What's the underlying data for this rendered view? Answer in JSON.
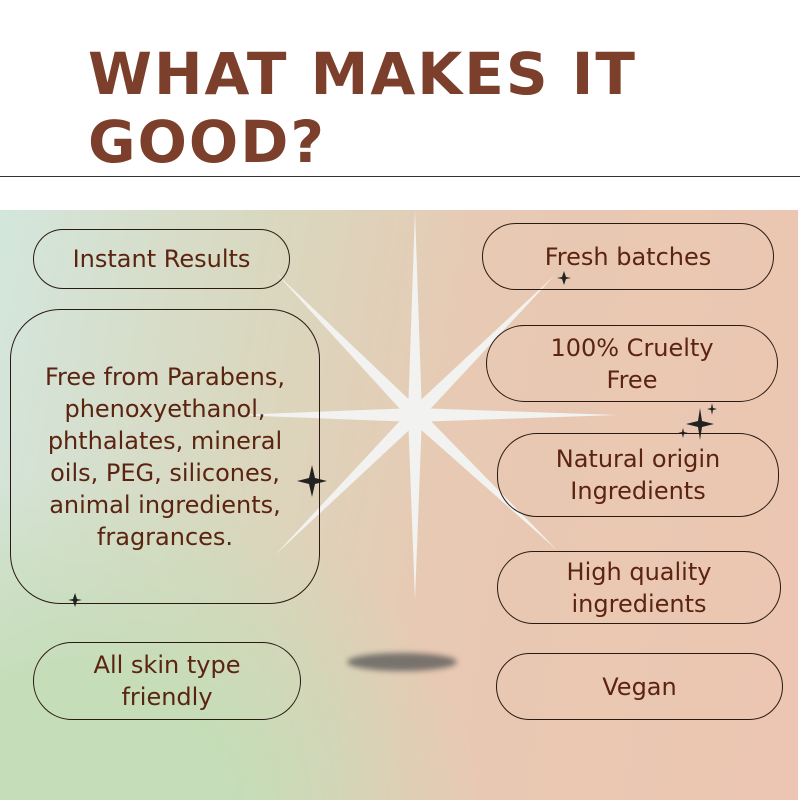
{
  "title": {
    "line1": "WHAT MAKES IT",
    "line2": "GOOD?"
  },
  "colors": {
    "title": "#7b3f2b",
    "text": "#5b2410",
    "green": "#c5ddb8",
    "peach": "#ecc6b2",
    "blue": "#dde6f1"
  },
  "left": [
    {
      "text": "Instant Results"
    },
    {
      "text": "Free from Parabens, phenoxyethanol, phthalates, mineral oils, PEG, silicones, animal ingredients, fragrances."
    },
    {
      "text": "All skin type friendly"
    }
  ],
  "right": [
    {
      "text": "Fresh batches"
    },
    {
      "text": "100% Cruelty Free"
    },
    {
      "text": "Natural origin Ingredients"
    },
    {
      "text": "High quality ingredients"
    },
    {
      "text": "Vegan"
    }
  ]
}
